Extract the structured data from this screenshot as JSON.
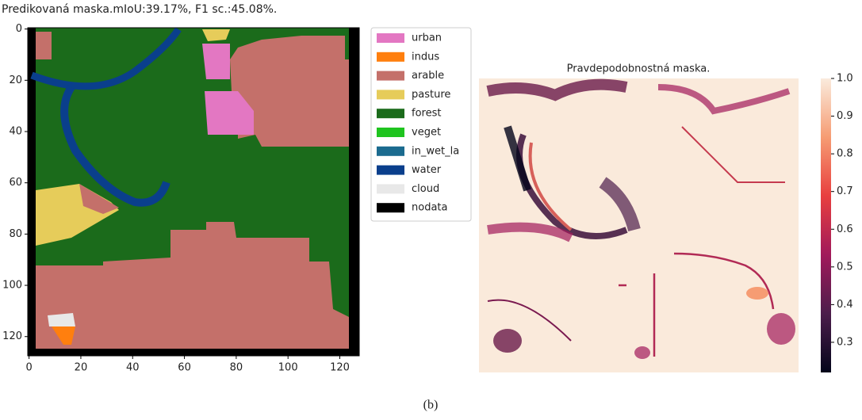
{
  "chart_data": [
    {
      "type": "image",
      "title": "Predikovaná maska.mIoU:39.17%, F1 sc.:45.08%.",
      "xlim": [
        -0.5,
        127.5
      ],
      "ylim": [
        127.5,
        -0.5
      ],
      "xticks": [
        0,
        20,
        40,
        60,
        80,
        100,
        120
      ],
      "yticks": [
        0,
        20,
        40,
        60,
        80,
        100,
        120
      ],
      "legend": [
        {
          "name": "urban",
          "color": "#e377c2"
        },
        {
          "name": "indus",
          "color": "#ff7f0e"
        },
        {
          "name": "arable",
          "color": "#c4706a"
        },
        {
          "name": "pasture",
          "color": "#e6cc5a"
        },
        {
          "name": "forest",
          "color": "#1b6b1b"
        },
        {
          "name": "veget",
          "color": "#1fc41f"
        },
        {
          "name": "in_wet_la",
          "color": "#1b6b8f"
        },
        {
          "name": "water",
          "color": "#0a3f8c"
        },
        {
          "name": "cloud",
          "color": "#e8e8e8"
        },
        {
          "name": "nodata",
          "color": "#000000"
        }
      ]
    },
    {
      "type": "heatmap",
      "title": "Pravdepodobnostná maska.",
      "clim": [
        0.22,
        1.0
      ],
      "cticks": [
        0.3,
        0.4,
        0.5,
        0.6,
        0.7,
        0.8,
        0.9,
        {
          "value": 1.0,
          "label": "1.0"
        }
      ]
    }
  ],
  "caption": "(b)"
}
